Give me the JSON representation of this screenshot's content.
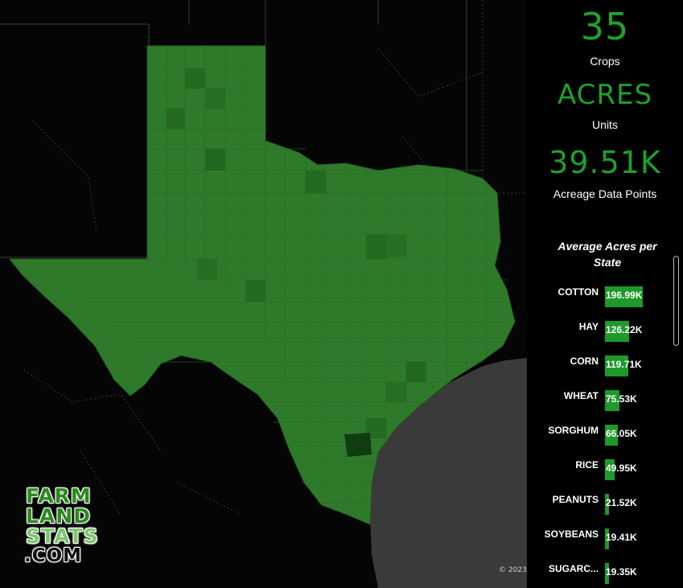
{
  "kpis": {
    "crops": {
      "value": "35",
      "label": "Crops"
    },
    "units": {
      "value": "ACRES",
      "label": "Units"
    },
    "datapoints": {
      "value": "39.51K",
      "label": "Acreage Data Points"
    }
  },
  "map": {
    "attribution": "© 2023",
    "fill_color": "#2f7a2a",
    "gulf_color": "#3a3a3a"
  },
  "logo": {
    "line1": "FARM",
    "line2": "LAND",
    "line3": "STATS",
    "line4": ".COM"
  },
  "chart_data": {
    "type": "bar",
    "orientation": "horizontal",
    "title": "Average Acres per State",
    "bar_color": "#1e9a2a",
    "categories": [
      "COTTON",
      "HAY",
      "CORN",
      "WHEAT",
      "SORGHUM",
      "RICE",
      "PEANUTS",
      "SOYBEANS",
      "SUGARC..."
    ],
    "values": [
      196990,
      126220,
      119710,
      75530,
      66050,
      49950,
      21520,
      19410,
      19350
    ],
    "value_labels": [
      "196.99K",
      "126.22K",
      "119.71K",
      "75.53K",
      "66.05K",
      "49.95K",
      "21.52K",
      "19.41K",
      "19.35K"
    ]
  }
}
